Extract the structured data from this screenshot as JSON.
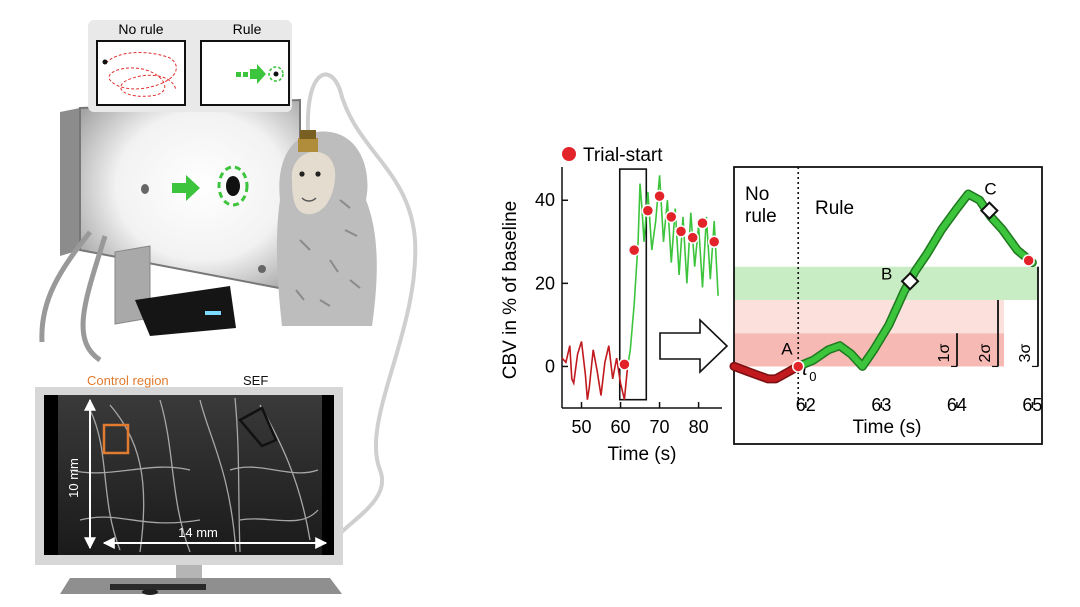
{
  "panel_left": {
    "inset": {
      "no_rule_label": "No rule",
      "rule_label": "Rule"
    },
    "brain": {
      "control_region_label": "Control region",
      "sef_label": "SEF",
      "height_label": "10 mm",
      "width_label": "14 mm"
    }
  },
  "legend": {
    "marker_label": "Trial-start"
  },
  "ylabel": "CBV in % of baseline",
  "colors": {
    "pre_rule": "#c0191e",
    "rule": "#3cc43c",
    "rule_dark": "#1f7a1f",
    "trial_marker": "#e2232a",
    "band_red": "#f6b9b4",
    "band_green": "#c8ecc4",
    "control_region": "#e07b30"
  },
  "chart_data": [
    {
      "type": "line",
      "xlabel": "Time (s)",
      "ylabel": "CBV in % of baseline",
      "xlim": [
        45,
        86
      ],
      "ylim": [
        -10,
        48
      ],
      "xticks": [
        50,
        60,
        70,
        80
      ],
      "yticks": [
        0,
        20,
        40
      ],
      "series": [
        {
          "color": "#c0191e",
          "x": [
            45,
            46,
            47,
            47.5,
            48,
            49,
            50,
            51,
            51.5,
            52,
            53,
            54,
            55,
            56,
            57,
            58,
            59,
            60,
            61,
            61.8
          ],
          "y": [
            2,
            1,
            5,
            -3,
            -4,
            3,
            6,
            -2,
            -8,
            -5,
            4,
            -1,
            -7,
            1,
            5,
            -3,
            2,
            -4,
            -8,
            0
          ]
        },
        {
          "color": "#3cc43c",
          "x": [
            61.8,
            62.5,
            63.5,
            64.5,
            65,
            65.5,
            66,
            67,
            68,
            69,
            70,
            71,
            72,
            73,
            74,
            75,
            76,
            77,
            78,
            79,
            80,
            81,
            82,
            83,
            84,
            85
          ],
          "y": [
            0,
            4,
            15,
            30,
            44,
            38,
            30,
            42,
            28,
            35,
            46,
            30,
            40,
            25,
            38,
            22,
            36,
            20,
            37,
            24,
            34,
            19,
            36,
            21,
            35,
            17
          ]
        }
      ],
      "trial_starts": {
        "x": [
          61,
          63.5,
          67,
          70,
          73,
          75.5,
          78.5,
          81,
          84
        ],
        "y": [
          0.5,
          28,
          37.5,
          41,
          36,
          32.5,
          31,
          34.5,
          30
        ]
      }
    },
    {
      "type": "line",
      "xlabel": "Time (s)",
      "xlim": [
        61.05,
        65.1
      ],
      "ylim": [
        -10,
        48
      ],
      "xticks": [
        62,
        63,
        64,
        65
      ],
      "annotations": {
        "no_rule_line1": "No",
        "no_rule_line2": "rule",
        "rule": "Rule",
        "t0": "t",
        "t0_sub": "0",
        "point_a": "A",
        "point_b": "B",
        "point_c": "C",
        "sigma1": "1σ",
        "sigma2": "2σ",
        "sigma3": "3σ"
      },
      "thresholds": {
        "baseline": 0,
        "sigma1": 8,
        "sigma2": 16,
        "sigma3": 24
      },
      "series": [
        {
          "color": "#c0191e",
          "x": [
            61.05,
            61.2,
            61.35,
            61.5,
            61.6,
            61.7,
            61.8,
            61.9
          ],
          "y": [
            0,
            -1,
            -2,
            -3,
            -3,
            -2,
            -1,
            0
          ]
        },
        {
          "color": "#3cc43c",
          "x": [
            61.9,
            62.1,
            62.3,
            62.45,
            62.6,
            62.75,
            62.9,
            63.1,
            63.3,
            63.45,
            63.6,
            63.8,
            64.0,
            64.15,
            64.3,
            64.45,
            64.6,
            64.8,
            65.0
          ],
          "y": [
            0,
            1.5,
            4,
            5,
            3,
            0,
            4,
            10,
            18,
            23,
            27,
            33,
            38,
            41.5,
            40,
            36,
            33,
            28,
            25
          ]
        }
      ],
      "markers": {
        "trial_start": [
          {
            "x": 61.9,
            "y": 0
          },
          {
            "x": 64.95,
            "y": 25.5
          }
        ],
        "diamonds": [
          {
            "x": 63.38,
            "y": 20.5
          },
          {
            "x": 64.43,
            "y": 37.5
          }
        ]
      }
    }
  ]
}
